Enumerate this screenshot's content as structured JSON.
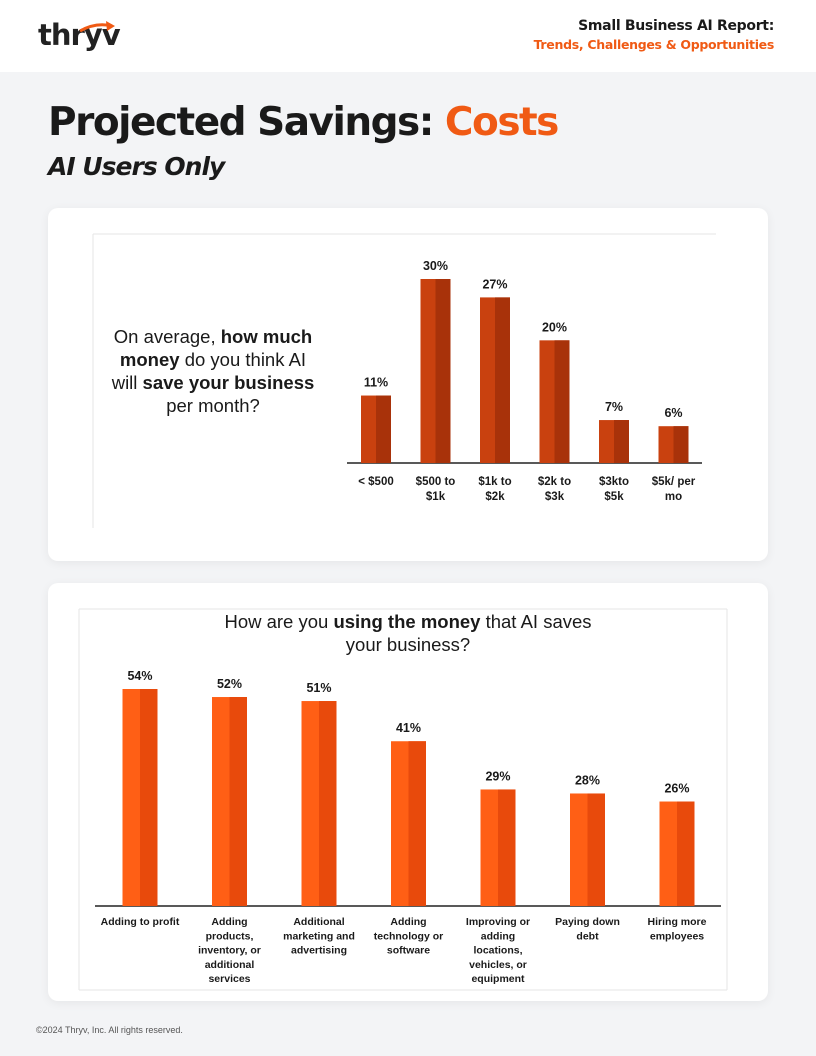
{
  "header": {
    "logo_text": "thryv",
    "report_title_line1": "Small Business AI Report:",
    "report_title_line2": "Trends, Challenges & Opportunities"
  },
  "page": {
    "title_main": "Projected Savings: ",
    "title_accent": "Costs",
    "subtitle": "AI Users Only"
  },
  "question1": {
    "p1": "On average, ",
    "b1": "how much money",
    "p2": " do you think AI will ",
    "b2": "save your business",
    "p3": " per month?"
  },
  "question2": {
    "p1": "How are you ",
    "b1": "using the money",
    "p2": " that AI saves your business?"
  },
  "footer": {
    "copyright": "©2024 Thryv, Inc. All rights reserved."
  },
  "colors": {
    "accent": "#f05a14",
    "bar1_light": "#c9410f",
    "bar1_dark": "#a8320a",
    "bar2_light": "#ff5f15",
    "bar2_dark": "#e84a0c"
  },
  "chart_data": [
    {
      "type": "bar",
      "title": "On average, how much money do you think AI will save your business per month?",
      "categories": [
        "< $500",
        "$500 to $1k",
        "$1k to $2k",
        "$2k to $3k",
        "$3kto $5k",
        "$5k/ per mo"
      ],
      "category_lines": [
        [
          "< $500"
        ],
        [
          "$500 to",
          "$1k"
        ],
        [
          "$1k to",
          "$2k"
        ],
        [
          "$2k to",
          "$3k"
        ],
        [
          "$3kto",
          "$5k"
        ],
        [
          "$5k/ per",
          "mo"
        ]
      ],
      "values": [
        11,
        30,
        27,
        20,
        7,
        6
      ],
      "value_labels": [
        "11%",
        "30%",
        "27%",
        "20%",
        "7%",
        "6%"
      ],
      "unit": "%",
      "ylim": [
        0,
        30
      ]
    },
    {
      "type": "bar",
      "title": "How are you using the money that AI saves your business?",
      "categories": [
        "Adding to profit",
        "Adding products, inventory, or additional services",
        "Additional marketing and advertising",
        "Adding technology or software",
        "Improving or adding locations, vehicles, or equipment",
        "Paying down debt",
        "Hiring more employees"
      ],
      "category_lines": [
        [
          "Adding to profit"
        ],
        [
          "Adding",
          "products,",
          "inventory, or",
          "additional",
          "services"
        ],
        [
          "Additional",
          "marketing and",
          "advertising"
        ],
        [
          "Adding",
          "technology or",
          "software"
        ],
        [
          "Improving or",
          "adding",
          "locations,",
          "vehicles, or",
          "equipment"
        ],
        [
          "Paying down",
          "debt"
        ],
        [
          "Hiring more",
          "employees"
        ]
      ],
      "values": [
        54,
        52,
        51,
        41,
        29,
        28,
        26
      ],
      "value_labels": [
        "54%",
        "52%",
        "51%",
        "41%",
        "29%",
        "28%",
        "26%"
      ],
      "unit": "%",
      "ylim": [
        0,
        54
      ]
    }
  ]
}
